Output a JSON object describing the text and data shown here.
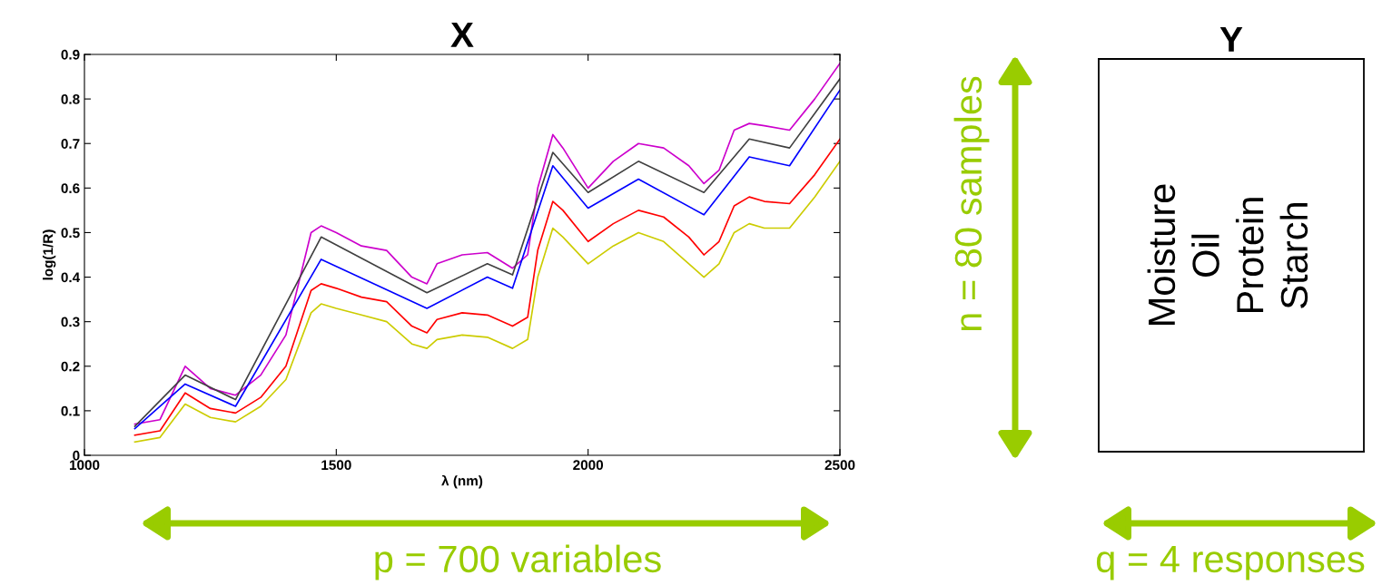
{
  "chart_data": [
    {
      "type": "line",
      "title": "X",
      "xlabel": "λ (nm)",
      "ylabel": "log(1/R)",
      "xlim": [
        1000,
        2500
      ],
      "xticks": [
        1000,
        1500,
        2000,
        2500
      ],
      "ylim": [
        0,
        0.9
      ],
      "yticks": [
        0,
        0.1,
        0.2,
        0.3,
        0.4,
        0.5,
        0.6,
        0.7,
        0.8,
        0.9
      ],
      "grid": false,
      "x": [
        1100,
        1150,
        1200,
        1250,
        1300,
        1350,
        1400,
        1450,
        1470,
        1500,
        1550,
        1600,
        1650,
        1680,
        1700,
        1750,
        1800,
        1850,
        1880,
        1900,
        1930,
        1950,
        2000,
        2050,
        2100,
        2150,
        2200,
        2230,
        2260,
        2290,
        2320,
        2350,
        2400,
        2450,
        2500
      ],
      "series": [
        {
          "color": "#cc00cc",
          "values": [
            0.07,
            0.08,
            0.2,
            0.15,
            0.135,
            0.18,
            0.27,
            0.5,
            0.515,
            0.5,
            0.47,
            0.46,
            0.4,
            0.385,
            0.43,
            0.45,
            0.455,
            0.42,
            0.45,
            0.6,
            0.72,
            0.69,
            0.6,
            0.66,
            0.7,
            0.69,
            0.65,
            0.61,
            0.64,
            0.73,
            0.745,
            0.74,
            0.73,
            0.8,
            0.88
          ]
        },
        {
          "color": "#404040",
          "x": [
            1100,
            1200,
            1300,
            1470,
            1680,
            1800,
            1850,
            1930,
            2000,
            2100,
            2230,
            2320,
            2400,
            2500
          ],
          "values": [
            0.065,
            0.18,
            0.125,
            0.49,
            0.365,
            0.43,
            0.405,
            0.68,
            0.59,
            0.66,
            0.59,
            0.71,
            0.69,
            0.845
          ]
        },
        {
          "color": "#0000ff",
          "x": [
            1100,
            1200,
            1300,
            1470,
            1680,
            1800,
            1850,
            1930,
            2000,
            2100,
            2230,
            2320,
            2400,
            2500
          ],
          "values": [
            0.06,
            0.16,
            0.11,
            0.44,
            0.33,
            0.4,
            0.375,
            0.65,
            0.555,
            0.62,
            0.54,
            0.67,
            0.65,
            0.82
          ]
        },
        {
          "color": "#ff0000",
          "values": [
            0.045,
            0.055,
            0.14,
            0.105,
            0.095,
            0.13,
            0.2,
            0.37,
            0.385,
            0.375,
            0.355,
            0.345,
            0.29,
            0.275,
            0.305,
            0.32,
            0.315,
            0.29,
            0.31,
            0.46,
            0.57,
            0.55,
            0.48,
            0.52,
            0.55,
            0.535,
            0.49,
            0.45,
            0.48,
            0.56,
            0.58,
            0.57,
            0.565,
            0.63,
            0.71
          ]
        },
        {
          "color": "#cccc00",
          "values": [
            0.03,
            0.04,
            0.115,
            0.085,
            0.075,
            0.11,
            0.17,
            0.32,
            0.34,
            0.33,
            0.315,
            0.3,
            0.25,
            0.24,
            0.26,
            0.27,
            0.265,
            0.24,
            0.26,
            0.4,
            0.51,
            0.49,
            0.43,
            0.47,
            0.5,
            0.48,
            0.43,
            0.4,
            0.43,
            0.5,
            0.52,
            0.51,
            0.51,
            0.58,
            0.66
          ]
        }
      ],
      "annotations": [
        "p = 700 variables"
      ]
    },
    {
      "type": "other",
      "title": "Y",
      "categories": [
        "Moisture",
        "Oil",
        "Protein",
        "Starch"
      ],
      "annotations": [
        "n = 80 samples",
        "q = 4 responses"
      ]
    }
  ]
}
